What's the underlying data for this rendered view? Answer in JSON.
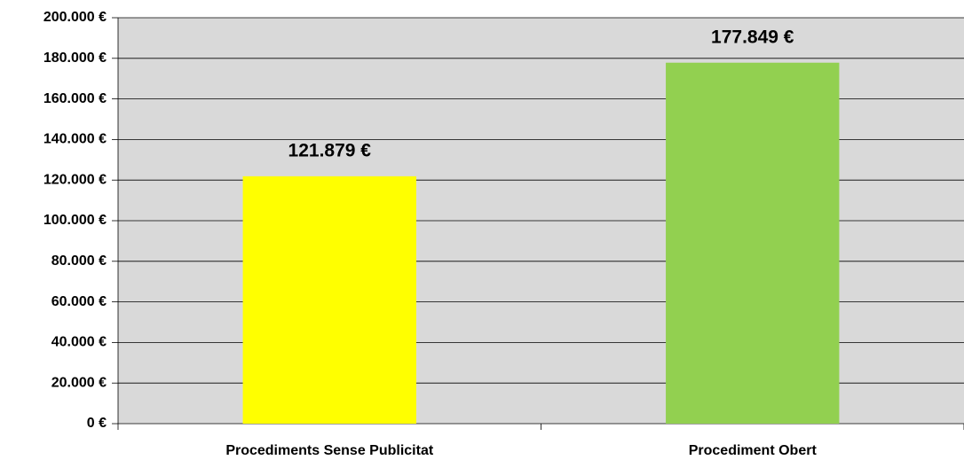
{
  "chart_data": {
    "type": "bar",
    "categories": [
      "Procediments Sense Publicitat",
      "Procediment Obert"
    ],
    "values": [
      121879,
      177849
    ],
    "value_labels": [
      "121.879 €",
      "177.849 €"
    ],
    "colors": [
      "#ffff00",
      "#92d050"
    ],
    "ylim": [
      0,
      200000
    ],
    "yticks": [
      {
        "value": 0,
        "label": "0 €"
      },
      {
        "value": 20000,
        "label": "20.000 €"
      },
      {
        "value": 40000,
        "label": "40.000 €"
      },
      {
        "value": 60000,
        "label": "60.000 €"
      },
      {
        "value": 80000,
        "label": "80.000 €"
      },
      {
        "value": 100000,
        "label": "100.000 €"
      },
      {
        "value": 120000,
        "label": "120.000 €"
      },
      {
        "value": 140000,
        "label": "140.000 €"
      },
      {
        "value": 160000,
        "label": "160.000 €"
      },
      {
        "value": 180000,
        "label": "180.000 €"
      },
      {
        "value": 200000,
        "label": "200.000 €"
      }
    ],
    "grid": true
  }
}
